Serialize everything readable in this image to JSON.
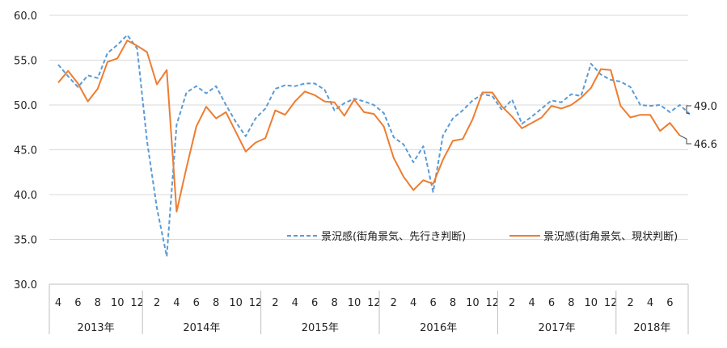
{
  "chart_data": {
    "type": "line",
    "y_ticks": [
      "30.0",
      "35.0",
      "40.0",
      "45.0",
      "50.0",
      "55.0",
      "60.0"
    ],
    "ylim": [
      30,
      60
    ],
    "x_month_ticks": [
      "4",
      "6",
      "8",
      "10",
      "12",
      "2",
      "4",
      "6",
      "8",
      "10",
      "12",
      "2",
      "4",
      "6",
      "8",
      "10",
      "12",
      "2",
      "4",
      "6",
      "8",
      "10",
      "12",
      "2",
      "4",
      "6",
      "8",
      "10",
      "12",
      "2",
      "4",
      "6"
    ],
    "years": [
      "2013年",
      "2014年",
      "2015年",
      "2016年",
      "2017年",
      "2018年"
    ],
    "grid": "horizontal",
    "legend_position": "lower-right",
    "series": [
      {
        "name": "景況感(街角景気、先行き判断)",
        "color": "#5b9bd5",
        "style": "dashed",
        "end_label": "49.0",
        "values": [
          54.5,
          53.2,
          52.0,
          53.3,
          53.0,
          55.8,
          56.7,
          57.8,
          56.3,
          46.0,
          38.5,
          33.1,
          47.8,
          51.4,
          52.1,
          51.3,
          52.1,
          50.0,
          48.1,
          46.5,
          48.5,
          49.6,
          51.8,
          52.2,
          52.1,
          52.4,
          52.4,
          51.7,
          49.4,
          50.2,
          50.7,
          50.4,
          50.0,
          49.1,
          46.4,
          45.6,
          43.6,
          45.4,
          40.3,
          46.6,
          48.5,
          49.4,
          50.5,
          51.2,
          51.0,
          49.4,
          50.6,
          47.9,
          48.7,
          49.6,
          50.5,
          50.3,
          51.2,
          51.0,
          54.6,
          53.4,
          52.8,
          52.6,
          52.0,
          50.0,
          49.9,
          50.0,
          49.2,
          50.0,
          49.0
        ],
        "annotation": {
          "text": "49.0"
        }
      },
      {
        "name": "景況感(街角景気、現状判断)",
        "color": "#ed7d31",
        "style": "solid",
        "end_label": "46.6",
        "values": [
          52.5,
          53.8,
          52.4,
          50.4,
          51.8,
          54.8,
          55.2,
          57.2,
          56.6,
          55.9,
          52.3,
          53.9,
          38.1,
          43.0,
          47.6,
          49.8,
          48.5,
          49.2,
          47.0,
          44.8,
          45.8,
          46.3,
          49.4,
          48.9,
          50.4,
          51.5,
          51.1,
          50.4,
          50.3,
          48.8,
          50.6,
          49.2,
          49.0,
          47.6,
          44.1,
          42.0,
          40.5,
          41.6,
          41.2,
          43.9,
          46.0,
          46.2,
          48.4,
          51.4,
          51.4,
          49.8,
          48.7,
          47.4,
          48.0,
          48.6,
          49.9,
          49.6,
          50.0,
          50.8,
          51.9,
          54.0,
          53.9,
          49.9,
          48.6,
          48.9,
          48.9,
          47.1,
          48.0,
          46.6
        ],
        "annotation": {
          "text": "46.6"
        }
      }
    ]
  }
}
